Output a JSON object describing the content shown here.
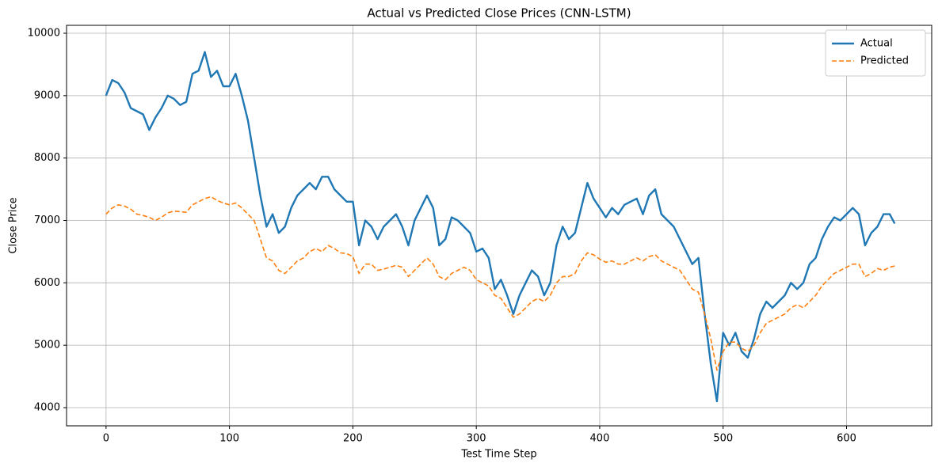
{
  "chart_data": {
    "type": "line",
    "title": "Actual vs Predicted Close Prices (CNN-LSTM)",
    "x_label": "Test Time Step",
    "y_label": "Close Price",
    "x": [
      0,
      5,
      10,
      15,
      20,
      25,
      30,
      35,
      40,
      45,
      50,
      55,
      60,
      65,
      70,
      75,
      80,
      85,
      90,
      95,
      100,
      105,
      110,
      115,
      120,
      125,
      130,
      135,
      140,
      145,
      150,
      155,
      160,
      165,
      170,
      175,
      180,
      185,
      190,
      195,
      200,
      205,
      210,
      215,
      220,
      225,
      230,
      235,
      240,
      245,
      250,
      255,
      260,
      265,
      270,
      275,
      280,
      285,
      290,
      295,
      300,
      305,
      310,
      315,
      320,
      325,
      330,
      335,
      340,
      345,
      350,
      355,
      360,
      365,
      370,
      375,
      380,
      385,
      390,
      395,
      400,
      405,
      410,
      415,
      420,
      425,
      430,
      435,
      440,
      445,
      450,
      455,
      460,
      465,
      470,
      475,
      480,
      485,
      490,
      495,
      500,
      505,
      510,
      515,
      520,
      525,
      530,
      535,
      540,
      545,
      550,
      555,
      560,
      565,
      570,
      575,
      580,
      585,
      590,
      595,
      600,
      605,
      610,
      615,
      620,
      625,
      630,
      635,
      639
    ],
    "series": [
      {
        "name": "Actual",
        "color": "#1f77b4",
        "linestyle": "solid",
        "values": [
          9000,
          9250,
          9200,
          9050,
          8800,
          8750,
          8700,
          8450,
          8650,
          8800,
          9000,
          8950,
          8850,
          8900,
          9350,
          9400,
          9700,
          9300,
          9400,
          9150,
          9150,
          9350,
          9000,
          8600,
          8000,
          7400,
          6900,
          7100,
          6800,
          6900,
          7200,
          7400,
          7500,
          7600,
          7500,
          7700,
          7700,
          7500,
          7400,
          7300,
          7300,
          6600,
          7000,
          6900,
          6700,
          6900,
          7000,
          7100,
          6900,
          6600,
          7000,
          7200,
          7400,
          7200,
          6600,
          6700,
          7050,
          7000,
          6900,
          6800,
          6500,
          6550,
          6400,
          5900,
          6050,
          5800,
          5500,
          5800,
          6000,
          6200,
          6100,
          5800,
          6000,
          6600,
          6900,
          6700,
          6800,
          7200,
          7600,
          7350,
          7200,
          7050,
          7200,
          7100,
          7250,
          7300,
          7350,
          7100,
          7400,
          7500,
          7100,
          7000,
          6900,
          6700,
          6500,
          6300,
          6400,
          5500,
          4700,
          4100,
          5200,
          5000,
          5200,
          4900,
          4800,
          5100,
          5500,
          5700,
          5600,
          5700,
          5800,
          6000,
          5900,
          6000,
          6300,
          6400,
          6700,
          6900,
          7050,
          7000,
          7100,
          7200,
          7100,
          6600,
          6800,
          6900,
          7100,
          7100,
          6950
        ]
      },
      {
        "name": "Predicted",
        "color": "#ff7f0e",
        "linestyle": "dashed",
        "values": [
          7100,
          7200,
          7250,
          7230,
          7180,
          7100,
          7080,
          7050,
          7000,
          7050,
          7120,
          7150,
          7140,
          7130,
          7250,
          7300,
          7350,
          7380,
          7320,
          7280,
          7250,
          7280,
          7200,
          7100,
          7000,
          6700,
          6400,
          6350,
          6200,
          6150,
          6250,
          6350,
          6400,
          6500,
          6550,
          6500,
          6600,
          6550,
          6480,
          6470,
          6420,
          6150,
          6300,
          6300,
          6200,
          6220,
          6250,
          6280,
          6250,
          6100,
          6200,
          6300,
          6400,
          6300,
          6100,
          6050,
          6150,
          6200,
          6250,
          6200,
          6050,
          6000,
          5950,
          5800,
          5750,
          5600,
          5450,
          5500,
          5600,
          5700,
          5750,
          5700,
          5800,
          6000,
          6100,
          6100,
          6150,
          6350,
          6480,
          6450,
          6380,
          6330,
          6350,
          6300,
          6300,
          6350,
          6400,
          6350,
          6420,
          6450,
          6350,
          6300,
          6250,
          6200,
          6050,
          5900,
          5850,
          5500,
          5100,
          4600,
          4900,
          5050,
          5050,
          4950,
          4900,
          5000,
          5200,
          5350,
          5400,
          5450,
          5500,
          5600,
          5650,
          5600,
          5700,
          5800,
          5950,
          6050,
          6150,
          6200,
          6250,
          6300,
          6300,
          6100,
          6150,
          6230,
          6200,
          6250,
          6270
        ]
      }
    ],
    "xlim": [
      -32,
      669
    ],
    "ylim": [
      3708,
      10127
    ],
    "xticks": [
      0,
      100,
      200,
      300,
      400,
      500,
      600
    ],
    "yticks": [
      4000,
      5000,
      6000,
      7000,
      8000,
      9000,
      10000
    ],
    "grid": true,
    "legend": "upper right"
  }
}
